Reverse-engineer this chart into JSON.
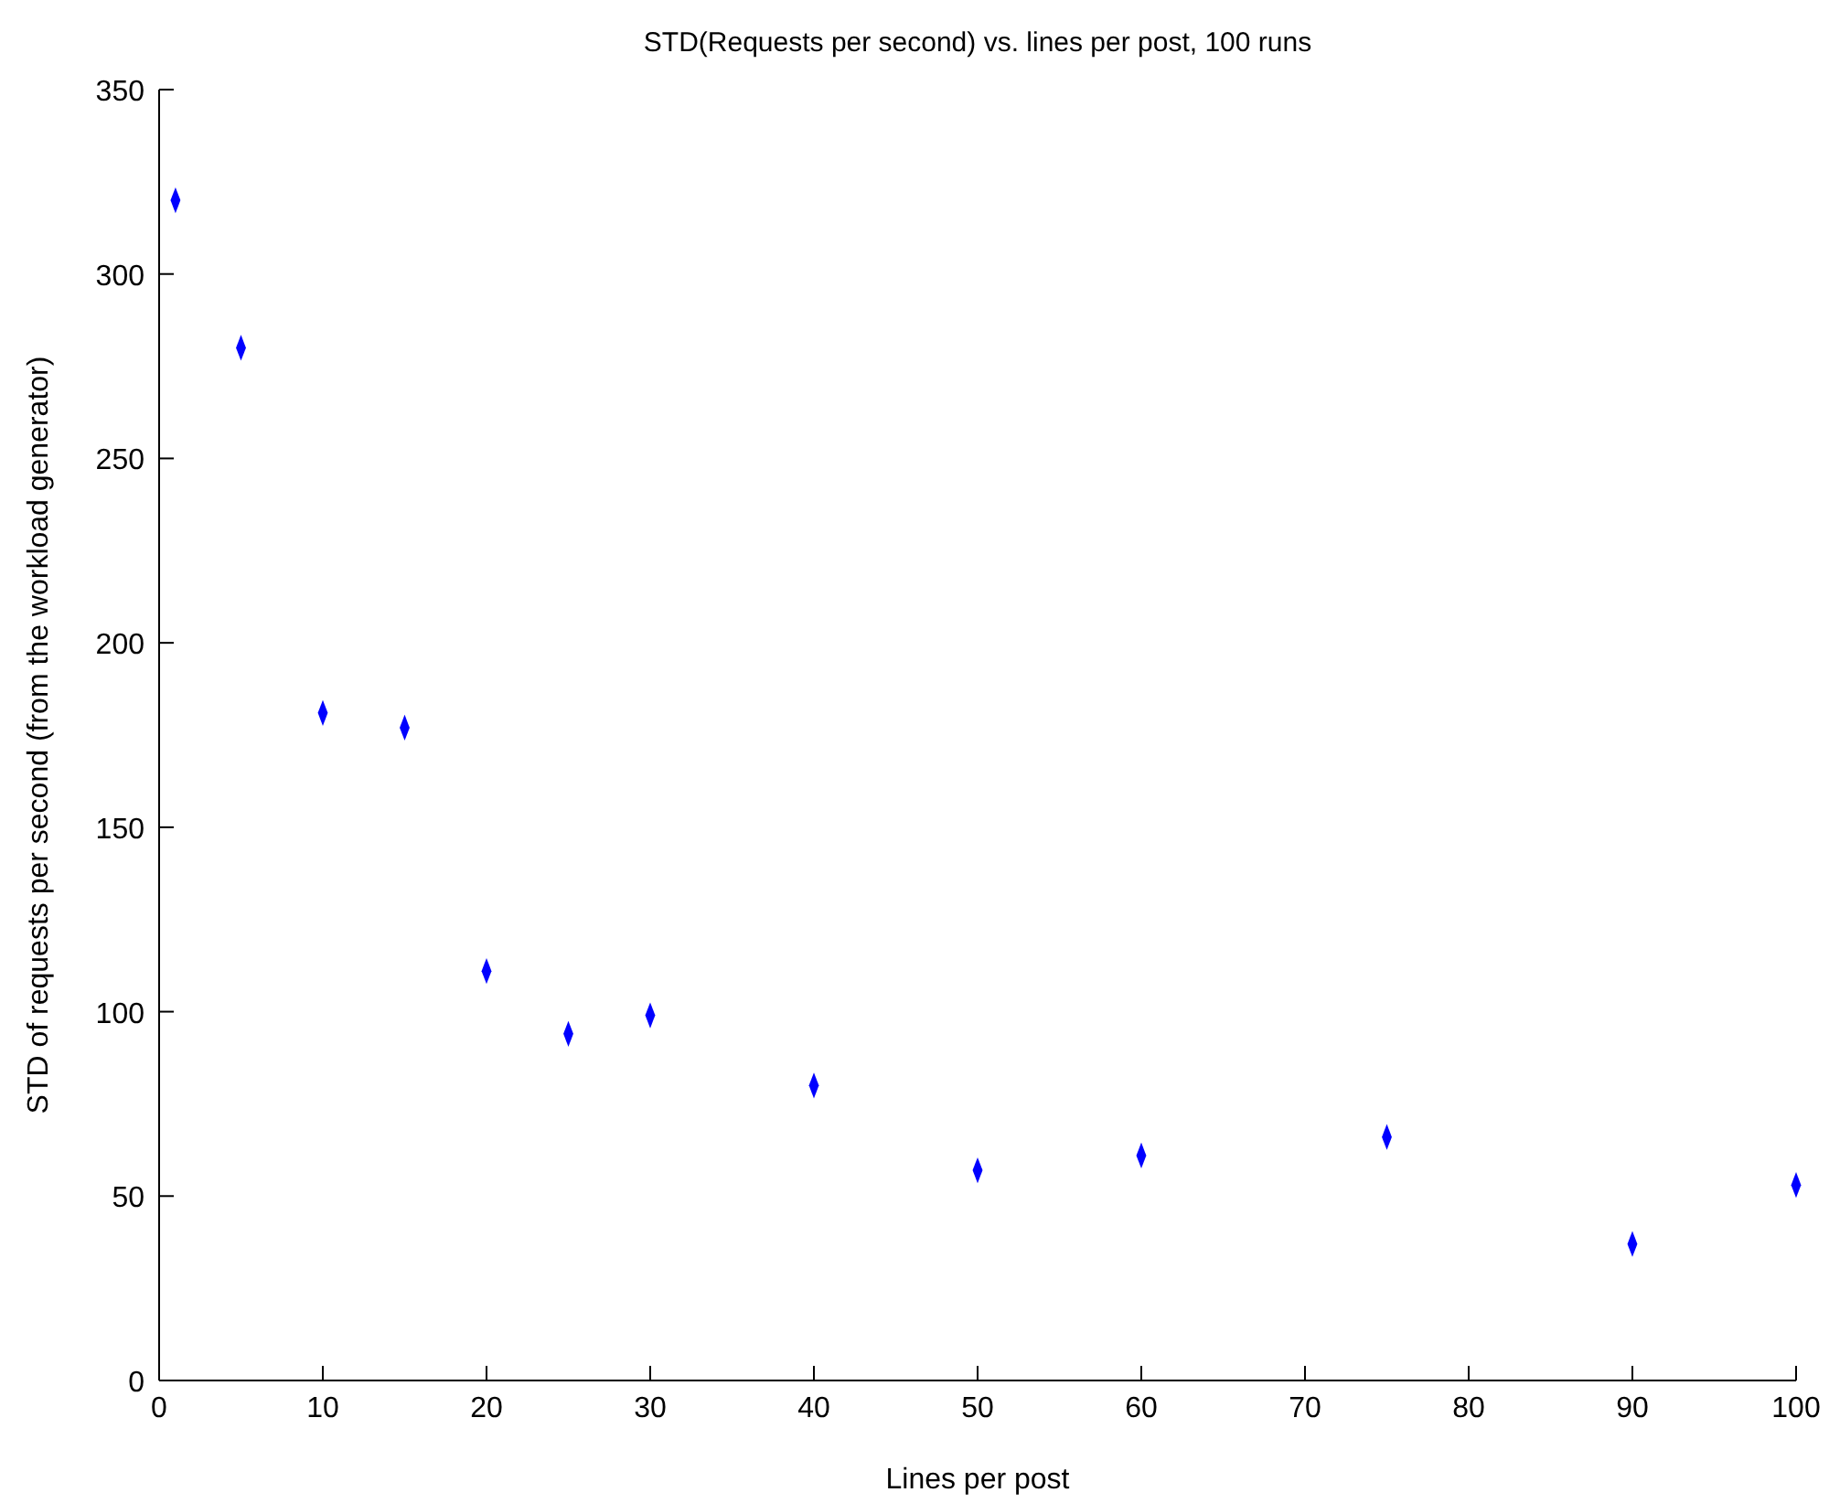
{
  "chart_data": {
    "type": "scatter",
    "title": "STD(Requests per second) vs. lines per post, 100 runs",
    "xlabel": "Lines per post",
    "ylabel": "STD of requests per second (from the workload generator)",
    "x": [
      1,
      5,
      10,
      15,
      20,
      25,
      30,
      40,
      50,
      60,
      75,
      90,
      100
    ],
    "series": [
      {
        "color": "#0000ff",
        "values": [
          320,
          280,
          181,
          177,
          111,
          94,
          99,
          80,
          57,
          61,
          66,
          37,
          53
        ]
      }
    ],
    "xlim": [
      0,
      100
    ],
    "xticks": [
      0,
      10,
      20,
      30,
      40,
      50,
      60,
      70,
      80,
      90,
      100
    ],
    "ylim": [
      0,
      350
    ],
    "yticks": [
      0,
      50,
      100,
      150,
      200,
      250,
      300,
      350
    ],
    "marker": "diamond",
    "grid": false
  }
}
